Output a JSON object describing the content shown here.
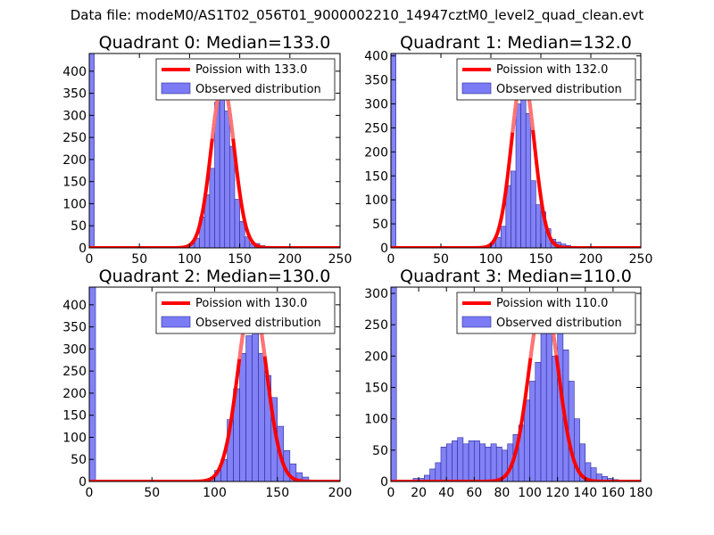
{
  "figure": {
    "suptitle": "Data file: modeM0/AS1T02_056T01_9000002210_14947cztM0_level2_quad_clean.evt"
  },
  "colors": {
    "hist": "#7b7bf5",
    "hist_edge": "#2a2a9a",
    "poisson": "#ff0000",
    "poisson_top": "#ff8a8a"
  },
  "chart_data": [
    {
      "type": "bar",
      "title": "Quadrant 0: Median=133.0",
      "xlim": [
        0,
        250
      ],
      "ylim": [
        0,
        440
      ],
      "xticks": [
        0,
        50,
        100,
        150,
        200,
        250
      ],
      "yticks": [
        0,
        50,
        100,
        150,
        200,
        250,
        300,
        350,
        400
      ],
      "legend": {
        "position": "top-right",
        "line_label": "Poission with 133.0",
        "bar_label": "Observed distribution"
      },
      "bin_width": 5,
      "bins": [
        {
          "x": 0,
          "y": 440
        },
        {
          "x": 70,
          "y": 2
        },
        {
          "x": 75,
          "y": 3
        },
        {
          "x": 80,
          "y": 2
        },
        {
          "x": 90,
          "y": 2
        },
        {
          "x": 95,
          "y": 5
        },
        {
          "x": 100,
          "y": 10
        },
        {
          "x": 105,
          "y": 22
        },
        {
          "x": 110,
          "y": 70
        },
        {
          "x": 115,
          "y": 120
        },
        {
          "x": 120,
          "y": 180
        },
        {
          "x": 125,
          "y": 330
        },
        {
          "x": 130,
          "y": 370
        },
        {
          "x": 135,
          "y": 310
        },
        {
          "x": 140,
          "y": 230
        },
        {
          "x": 145,
          "y": 110
        },
        {
          "x": 150,
          "y": 60
        },
        {
          "x": 155,
          "y": 25
        },
        {
          "x": 160,
          "y": 10
        },
        {
          "x": 165,
          "y": 10
        },
        {
          "x": 170,
          "y": 5
        },
        {
          "x": 175,
          "y": 3
        }
      ],
      "poisson": {
        "mean": 133.0,
        "peak": 370
      }
    },
    {
      "type": "bar",
      "title": "Quadrant 1: Median=132.0",
      "xlim": [
        0,
        250
      ],
      "ylim": [
        0,
        405
      ],
      "xticks": [
        0,
        50,
        100,
        150,
        200,
        250
      ],
      "yticks": [
        0,
        50,
        100,
        150,
        200,
        250,
        300,
        350,
        400
      ],
      "legend": {
        "position": "top-right",
        "line_label": "Poission with 132.0",
        "bar_label": "Observed distribution"
      },
      "bin_width": 5,
      "bins": [
        {
          "x": 0,
          "y": 405
        },
        {
          "x": 70,
          "y": 3
        },
        {
          "x": 95,
          "y": 5
        },
        {
          "x": 100,
          "y": 10
        },
        {
          "x": 105,
          "y": 22
        },
        {
          "x": 110,
          "y": 45
        },
        {
          "x": 115,
          "y": 130
        },
        {
          "x": 120,
          "y": 160
        },
        {
          "x": 125,
          "y": 300
        },
        {
          "x": 130,
          "y": 380
        },
        {
          "x": 135,
          "y": 280
        },
        {
          "x": 140,
          "y": 140
        },
        {
          "x": 145,
          "y": 90
        },
        {
          "x": 150,
          "y": 75
        },
        {
          "x": 155,
          "y": 40
        },
        {
          "x": 160,
          "y": 18
        },
        {
          "x": 165,
          "y": 12
        },
        {
          "x": 170,
          "y": 8
        },
        {
          "x": 175,
          "y": 5
        },
        {
          "x": 180,
          "y": 3
        }
      ],
      "poisson": {
        "mean": 132.0,
        "peak": 360
      }
    },
    {
      "type": "bar",
      "title": "Quadrant 2: Median=130.0",
      "xlim": [
        0,
        200
      ],
      "ylim": [
        0,
        440
      ],
      "xticks": [
        0,
        50,
        100,
        150,
        200
      ],
      "yticks": [
        0,
        50,
        100,
        150,
        200,
        250,
        300,
        350,
        400
      ],
      "legend": {
        "position": "top-right",
        "line_label": "Poission with 130.0",
        "bar_label": "Observed distribution"
      },
      "bin_width": 5,
      "bins": [
        {
          "x": 0,
          "y": 440
        },
        {
          "x": 75,
          "y": 2
        },
        {
          "x": 80,
          "y": 3
        },
        {
          "x": 90,
          "y": 3
        },
        {
          "x": 95,
          "y": 6
        },
        {
          "x": 100,
          "y": 25
        },
        {
          "x": 105,
          "y": 50
        },
        {
          "x": 110,
          "y": 140
        },
        {
          "x": 115,
          "y": 210
        },
        {
          "x": 120,
          "y": 290
        },
        {
          "x": 125,
          "y": 330
        },
        {
          "x": 130,
          "y": 405
        },
        {
          "x": 135,
          "y": 290
        },
        {
          "x": 140,
          "y": 240
        },
        {
          "x": 145,
          "y": 190
        },
        {
          "x": 150,
          "y": 125
        },
        {
          "x": 155,
          "y": 70
        },
        {
          "x": 160,
          "y": 40
        },
        {
          "x": 165,
          "y": 20
        },
        {
          "x": 170,
          "y": 10
        }
      ],
      "poisson": {
        "mean": 130.0,
        "peak": 415
      }
    },
    {
      "type": "bar",
      "title": "Quadrant 3: Median=110.0",
      "xlim": [
        0,
        180
      ],
      "ylim": [
        0,
        310
      ],
      "xticks": [
        0,
        20,
        40,
        60,
        80,
        100,
        120,
        140,
        160,
        180
      ],
      "yticks": [
        0,
        50,
        100,
        150,
        200,
        250,
        300
      ],
      "legend": {
        "position": "top-right",
        "line_label": "Poission with 110.0",
        "bar_label": "Observed distribution"
      },
      "bin_width": 4,
      "bins": [
        {
          "x": 0,
          "y": 310
        },
        {
          "x": 16,
          "y": 5
        },
        {
          "x": 20,
          "y": 5
        },
        {
          "x": 24,
          "y": 10
        },
        {
          "x": 28,
          "y": 20
        },
        {
          "x": 32,
          "y": 30
        },
        {
          "x": 36,
          "y": 55
        },
        {
          "x": 40,
          "y": 60
        },
        {
          "x": 44,
          "y": 65
        },
        {
          "x": 48,
          "y": 70
        },
        {
          "x": 52,
          "y": 60
        },
        {
          "x": 56,
          "y": 65
        },
        {
          "x": 60,
          "y": 65
        },
        {
          "x": 64,
          "y": 60
        },
        {
          "x": 68,
          "y": 55
        },
        {
          "x": 72,
          "y": 60
        },
        {
          "x": 76,
          "y": 55
        },
        {
          "x": 80,
          "y": 50
        },
        {
          "x": 84,
          "y": 60
        },
        {
          "x": 88,
          "y": 75
        },
        {
          "x": 92,
          "y": 90
        },
        {
          "x": 96,
          "y": 130
        },
        {
          "x": 100,
          "y": 160
        },
        {
          "x": 104,
          "y": 190
        },
        {
          "x": 108,
          "y": 260
        },
        {
          "x": 112,
          "y": 300
        },
        {
          "x": 116,
          "y": 200
        },
        {
          "x": 120,
          "y": 290
        },
        {
          "x": 124,
          "y": 210
        },
        {
          "x": 128,
          "y": 160
        },
        {
          "x": 132,
          "y": 100
        },
        {
          "x": 136,
          "y": 60
        },
        {
          "x": 140,
          "y": 30
        },
        {
          "x": 144,
          "y": 22
        },
        {
          "x": 148,
          "y": 12
        },
        {
          "x": 152,
          "y": 8
        },
        {
          "x": 156,
          "y": 5
        },
        {
          "x": 160,
          "y": 3
        }
      ],
      "poisson": {
        "mean": 110.0,
        "peak": 295
      }
    }
  ]
}
